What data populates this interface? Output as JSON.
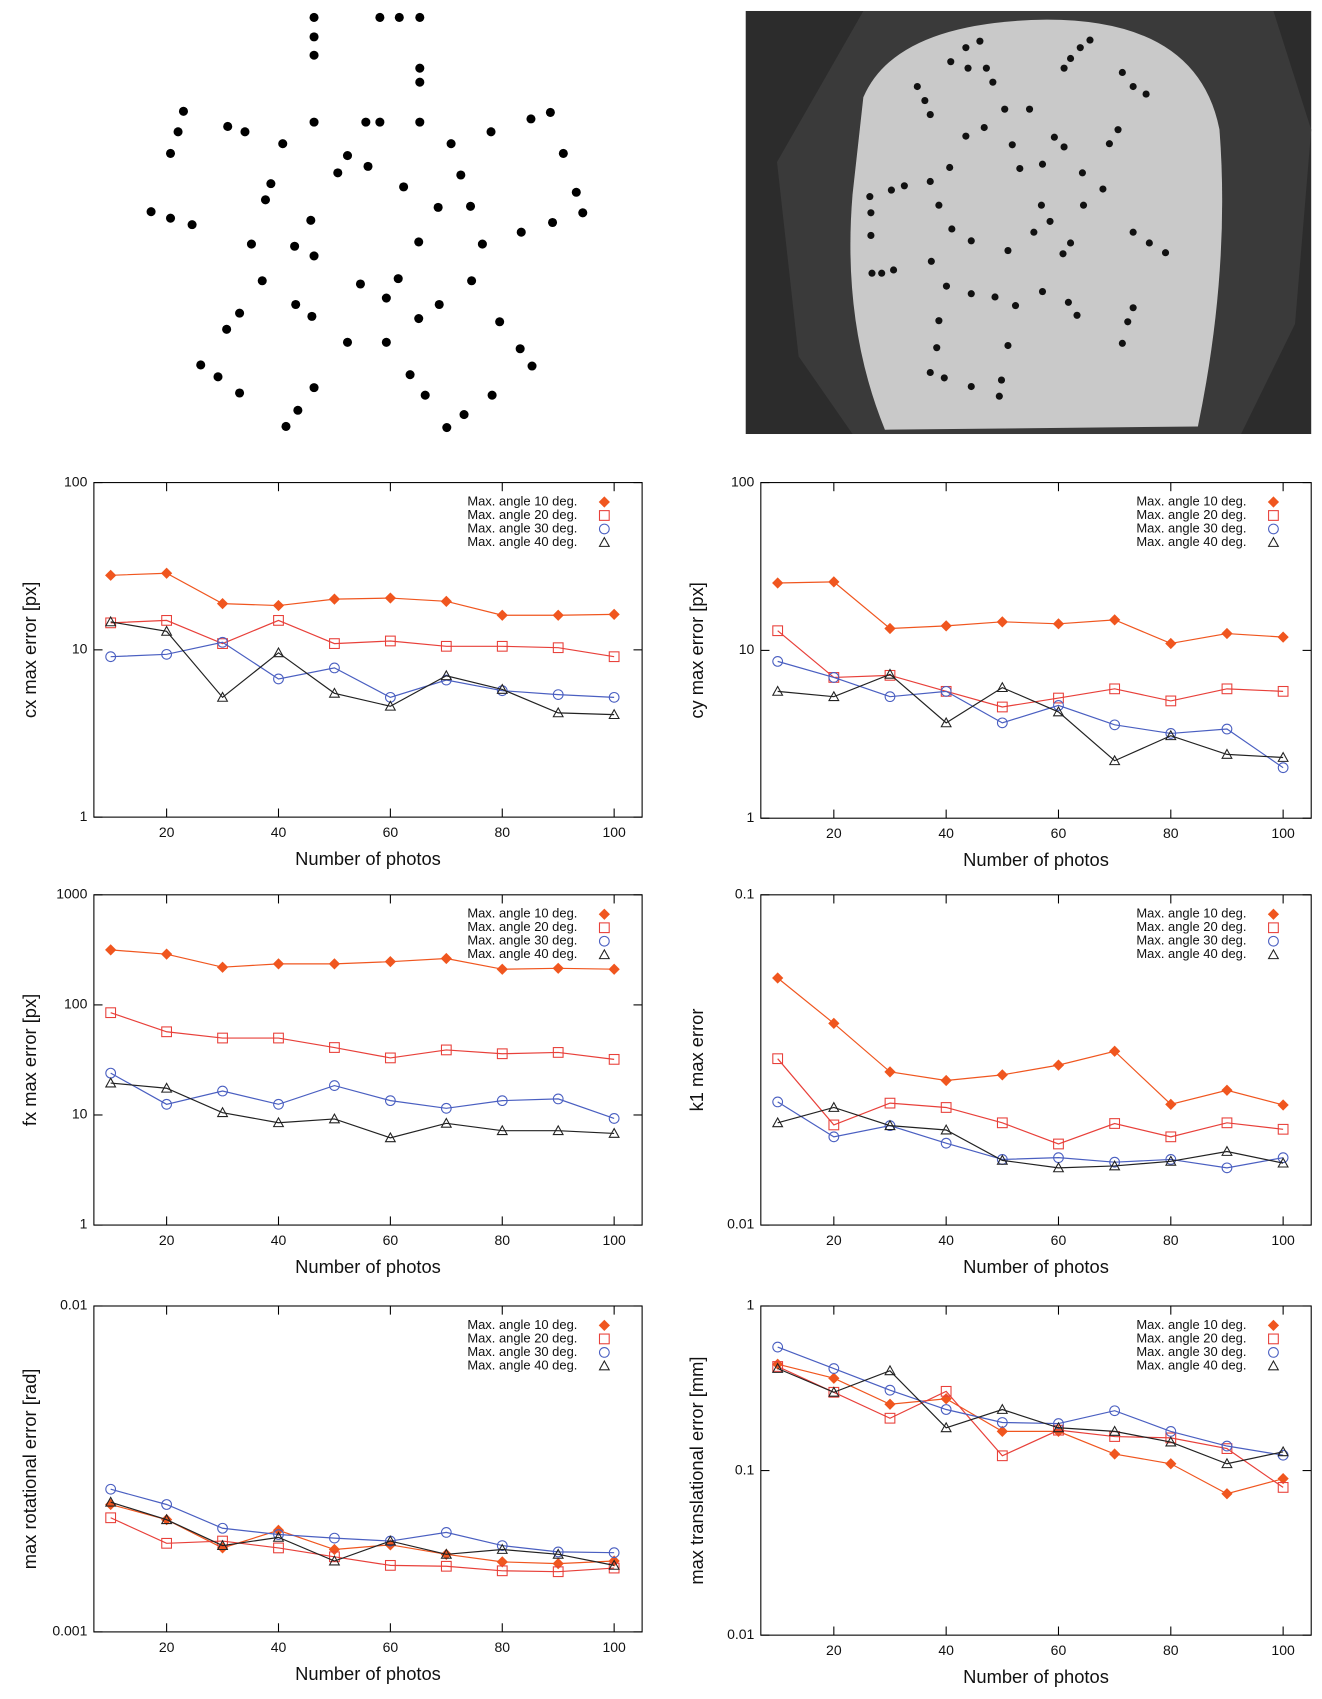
{
  "chart_data": [
    {
      "type": "line",
      "xlabel": "Number of photos",
      "ylabel": "cx max error [px]",
      "log_y": true,
      "legend": "upper right",
      "x": [
        10,
        20,
        30,
        40,
        50,
        60,
        70,
        80,
        90,
        100
      ],
      "xlim": [
        7,
        105
      ],
      "xticks": [
        20,
        40,
        60,
        80,
        100
      ],
      "ylim": [
        1,
        100
      ],
      "yticks": [
        1,
        10,
        100
      ],
      "series": [
        {
          "name": "Max. angle 10 deg.",
          "color": "#f0561f",
          "marker": "diamond",
          "values": [
            27.9,
            28.7,
            18.9,
            18.4,
            20.1,
            20.4,
            19.5,
            16.1,
            16.1,
            16.3
          ]
        },
        {
          "name": "Max. angle 20 deg.",
          "color": "#e8403a",
          "marker": "square",
          "values": [
            14.5,
            15.0,
            10.9,
            15.0,
            10.9,
            11.3,
            10.5,
            10.5,
            10.3,
            9.1
          ]
        },
        {
          "name": "Max. angle 30 deg.",
          "color": "#4a5fc1",
          "marker": "circle",
          "values": [
            9.1,
            9.4,
            11.1,
            6.7,
            7.8,
            5.2,
            6.6,
            5.7,
            5.4,
            5.2
          ]
        },
        {
          "name": "Max. angle 40 deg.",
          "color": "#222222",
          "marker": "triangle",
          "values": [
            14.7,
            12.9,
            5.2,
            9.6,
            5.5,
            4.6,
            7.0,
            5.8,
            4.2,
            4.1
          ]
        }
      ]
    },
    {
      "type": "line",
      "xlabel": "Number of photos",
      "ylabel": "cy max error [px]",
      "log_y": true,
      "legend": "upper right",
      "x": [
        10,
        20,
        30,
        40,
        50,
        60,
        70,
        80,
        90,
        100
      ],
      "xlim": [
        7,
        105
      ],
      "xticks": [
        20,
        40,
        60,
        80,
        100
      ],
      "ylim": [
        1,
        100
      ],
      "yticks": [
        1,
        10,
        100
      ],
      "series": [
        {
          "name": "Max. angle 10 deg.",
          "color": "#f0561f",
          "marker": "diamond",
          "values": [
            25.2,
            25.6,
            13.5,
            14.0,
            14.8,
            14.4,
            15.2,
            11.0,
            12.6,
            12.0
          ]
        },
        {
          "name": "Max. angle 20 deg.",
          "color": "#e8403a",
          "marker": "square",
          "values": [
            13.1,
            6.9,
            7.1,
            5.7,
            4.6,
            5.2,
            5.9,
            5.0,
            5.9,
            5.7
          ]
        },
        {
          "name": "Max. angle 30 deg.",
          "color": "#4a5fc1",
          "marker": "circle",
          "values": [
            8.6,
            6.9,
            5.3,
            5.7,
            3.7,
            4.7,
            3.6,
            3.2,
            3.4,
            2.0
          ]
        },
        {
          "name": "Max. angle 40 deg.",
          "color": "#222222",
          "marker": "triangle",
          "values": [
            5.7,
            5.3,
            7.2,
            3.7,
            6.0,
            4.3,
            2.2,
            3.1,
            2.4,
            2.3
          ]
        }
      ]
    },
    {
      "type": "line",
      "xlabel": "Number of photos",
      "ylabel": "fx max error [px]",
      "log_y": true,
      "legend": "upper right",
      "x": [
        10,
        20,
        30,
        40,
        50,
        60,
        70,
        80,
        90,
        100
      ],
      "xlim": [
        7,
        105
      ],
      "xticks": [
        20,
        40,
        60,
        80,
        100
      ],
      "ylim": [
        1,
        1000
      ],
      "yticks": [
        1,
        10,
        100,
        1000
      ],
      "series": [
        {
          "name": "Max. angle 10 deg.",
          "color": "#f0561f",
          "marker": "diamond",
          "values": [
            316,
            289,
            220,
            236,
            236,
            247,
            264,
            211,
            215,
            211
          ]
        },
        {
          "name": "Max. angle 20 deg.",
          "color": "#e8403a",
          "marker": "square",
          "values": [
            85,
            57,
            50,
            50,
            41,
            33,
            39,
            36,
            37,
            32
          ]
        },
        {
          "name": "Max. angle 30 deg.",
          "color": "#4a5fc1",
          "marker": "circle",
          "values": [
            24,
            12.5,
            16.5,
            12.5,
            18.5,
            13.5,
            11.5,
            13.5,
            14,
            9.3
          ]
        },
        {
          "name": "Max. angle 40 deg.",
          "color": "#222222",
          "marker": "triangle",
          "values": [
            19.5,
            17.5,
            10.5,
            8.5,
            9.2,
            6.2,
            8.4,
            7.2,
            7.2,
            6.8
          ]
        }
      ]
    },
    {
      "type": "line",
      "xlabel": "Number of photos",
      "ylabel": "k1 max error",
      "log_y": true,
      "legend": "upper right",
      "x": [
        10,
        20,
        30,
        40,
        50,
        60,
        70,
        80,
        90,
        100
      ],
      "xlim": [
        7,
        105
      ],
      "xticks": [
        20,
        40,
        60,
        80,
        100
      ],
      "ylim": [
        0.01,
        0.1
      ],
      "yticks": [
        0.01,
        0.1
      ],
      "series": [
        {
          "name": "Max. angle 10 deg.",
          "color": "#f0561f",
          "marker": "diamond",
          "values": [
            0.056,
            0.0408,
            0.0291,
            0.0274,
            0.0285,
            0.0305,
            0.0336,
            0.0232,
            0.0256,
            0.0231
          ]
        },
        {
          "name": "Max. angle 20 deg.",
          "color": "#e8403a",
          "marker": "square",
          "values": [
            0.0319,
            0.0201,
            0.0234,
            0.0227,
            0.0204,
            0.0176,
            0.0203,
            0.0185,
            0.0204,
            0.0195
          ]
        },
        {
          "name": "Max. angle 30 deg.",
          "color": "#4a5fc1",
          "marker": "circle",
          "values": [
            0.0236,
            0.0185,
            0.02,
            0.0177,
            0.0158,
            0.016,
            0.0155,
            0.0158,
            0.0149,
            0.016
          ]
        },
        {
          "name": "Max. angle 40 deg.",
          "color": "#222222",
          "marker": "triangle",
          "values": [
            0.0204,
            0.0227,
            0.02,
            0.0194,
            0.0157,
            0.0149,
            0.0151,
            0.0156,
            0.0167,
            0.0154
          ]
        }
      ]
    },
    {
      "type": "line",
      "xlabel": "Number of photos",
      "ylabel": "max rotational error [rad]",
      "log_y": true,
      "legend": "upper right",
      "x": [
        10,
        20,
        30,
        40,
        50,
        60,
        70,
        80,
        90,
        100
      ],
      "xlim": [
        7,
        105
      ],
      "xticks": [
        20,
        40,
        60,
        80,
        100
      ],
      "ylim": [
        0.001,
        0.01
      ],
      "yticks": [
        0.001,
        0.01
      ],
      "series": [
        {
          "name": "Max. angle 10 deg.",
          "color": "#f0561f",
          "marker": "diamond",
          "values": [
            0.00246,
            0.00221,
            0.00181,
            0.00205,
            0.00179,
            0.00185,
            0.00173,
            0.00164,
            0.00162,
            0.00165
          ]
        },
        {
          "name": "Max. angle 20 deg.",
          "color": "#e8403a",
          "marker": "square",
          "values": [
            0.00224,
            0.00187,
            0.0019,
            0.00181,
            0.0017,
            0.0016,
            0.00159,
            0.00154,
            0.00153,
            0.00157
          ]
        },
        {
          "name": "Max. angle 30 deg.",
          "color": "#4a5fc1",
          "marker": "circle",
          "values": [
            0.00274,
            0.00246,
            0.00208,
            0.00199,
            0.00194,
            0.0019,
            0.00202,
            0.00184,
            0.00176,
            0.00175
          ]
        },
        {
          "name": "Max. angle 40 deg.",
          "color": "#222222",
          "marker": "triangle",
          "values": [
            0.0025,
            0.00221,
            0.00184,
            0.00195,
            0.00165,
            0.0019,
            0.00173,
            0.00179,
            0.00173,
            0.0016
          ]
        }
      ]
    },
    {
      "type": "line",
      "xlabel": "Number of photos",
      "ylabel": "max translational error [mm]",
      "log_y": true,
      "legend": "upper right",
      "x": [
        10,
        20,
        30,
        40,
        50,
        60,
        70,
        80,
        90,
        100
      ],
      "xlim": [
        7,
        105
      ],
      "xticks": [
        20,
        40,
        60,
        80,
        100
      ],
      "ylim": [
        0.01,
        1
      ],
      "yticks": [
        0.01,
        0.1,
        1
      ],
      "series": [
        {
          "name": "Max. angle 10 deg.",
          "color": "#f0561f",
          "marker": "diamond",
          "values": [
            0.443,
            0.364,
            0.253,
            0.273,
            0.173,
            0.173,
            0.126,
            0.11,
            0.0723,
            0.0893
          ]
        },
        {
          "name": "Max. angle 20 deg.",
          "color": "#e8403a",
          "marker": "square",
          "values": [
            0.429,
            0.299,
            0.208,
            0.303,
            0.123,
            0.176,
            0.161,
            0.158,
            0.136,
            0.079
          ]
        },
        {
          "name": "Max. angle 30 deg.",
          "color": "#4a5fc1",
          "marker": "circle",
          "values": [
            0.563,
            0.417,
            0.308,
            0.235,
            0.196,
            0.193,
            0.231,
            0.173,
            0.141,
            0.124
          ]
        },
        {
          "name": "Max. angle 40 deg.",
          "color": "#222222",
          "marker": "triangle",
          "values": [
            0.417,
            0.299,
            0.404,
            0.182,
            0.235,
            0.182,
            0.173,
            0.149,
            0.11,
            0.13
          ]
        }
      ]
    }
  ]
}
